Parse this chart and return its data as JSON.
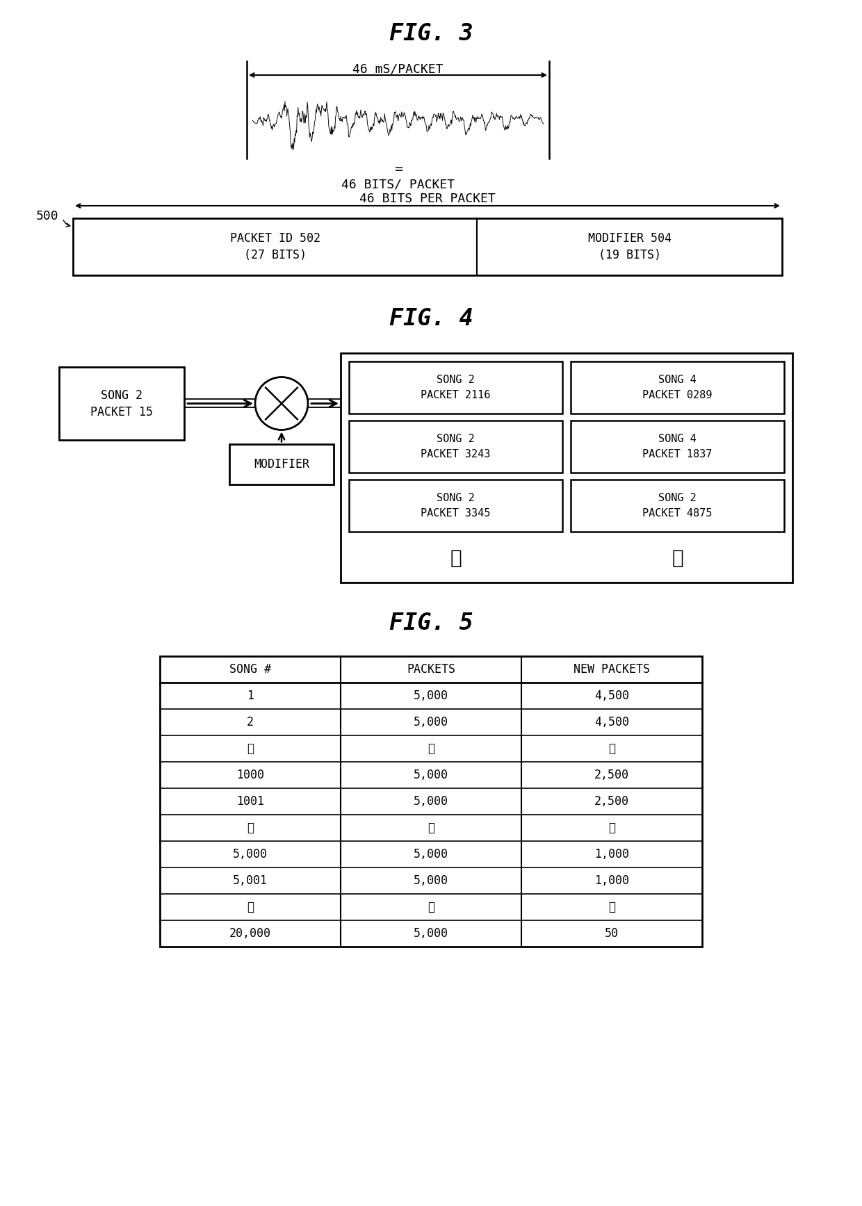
{
  "fig3_title": "FIG. 3",
  "fig4_title": "FIG. 4",
  "fig5_title": "FIG. 5",
  "fig3_arrow_label": "46 mS/PACKET",
  "fig3_eq_label": "=",
  "fig3_bits_label": "46 BITS/ PACKET",
  "fig3_packet_label": "46 BITS PER PACKET",
  "fig3_label500": "500",
  "fig3_packetid_line1": "PACKET ID 502",
  "fig3_packetid_line2": "(27 BITS)",
  "fig3_modifier_line1": "MODIFIER 504",
  "fig3_modifier_line2": "(19 BITS)",
  "fig4_input_line1": "SONG 2",
  "fig4_input_line2": "PACKET 15",
  "fig4_modifier_label": "MODIFIER",
  "fig4_packets": [
    [
      "SONG 2\nPACKET 2116",
      "SONG 4\nPACKET 0289"
    ],
    [
      "SONG 2\nPACKET 3243",
      "SONG 4\nPACKET 1837"
    ],
    [
      "SONG 2\nPACKET 3345",
      "SONG 2\nPACKET 4875"
    ]
  ],
  "fig5_headers": [
    "SONG #",
    "PACKETS",
    "NEW PACKETS"
  ],
  "fig5_rows": [
    [
      "1",
      "5,000",
      "4,500"
    ],
    [
      "2",
      "5,000",
      "4,500"
    ],
    [
      "⋮",
      "⋮",
      "⋮"
    ],
    [
      "1000",
      "5,000",
      "2,500"
    ],
    [
      "1001",
      "5,000",
      "2,500"
    ],
    [
      "⋮",
      "⋮",
      "⋮"
    ],
    [
      "5,000",
      "5,000",
      "1,000"
    ],
    [
      "5,001",
      "5,000",
      "1,000"
    ],
    [
      "⋮",
      "⋮",
      "⋮"
    ],
    [
      "20,000",
      "5,000",
      "50"
    ]
  ],
  "bg": "#ffffff",
  "lc": "#000000"
}
